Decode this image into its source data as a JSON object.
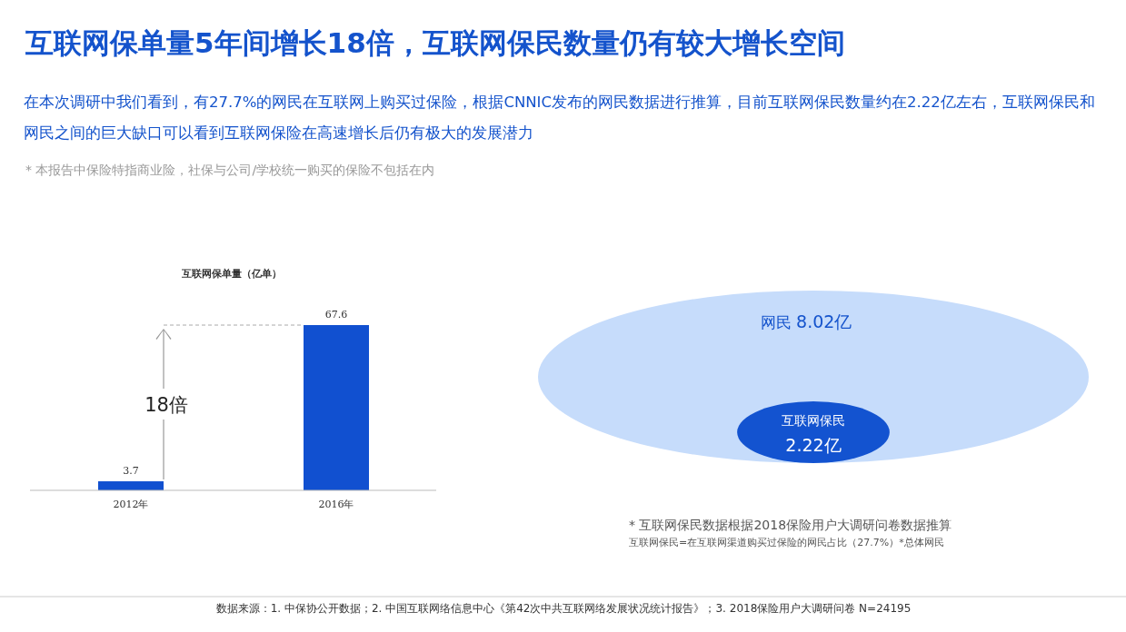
{
  "chart_data": [
    {
      "type": "other",
      "title": "互联网保单量5年间增长18倍，互联网保民数量仍有较大增长空间",
      "subtitle": "在本次调研中我们看到，有27.7%的网民在互联网上购买过保险，根据CNNIC发布的网民数据进行推算，目前互联网保民数量约在2.22亿左右，互联网保民和网民之间的巨大缺口可以看到互联网保险在高速增长后仍有极大的发展潜力",
      "annotations": [
        "* 本报告中保险特指商业险，社保与公司/学校统一购买的保险不包括在内",
        "数据来源：1. 中保协公开数据；2. 中国互联网络信息中心《第42次中共互联网络发展状况统计报告》；3. 2018保险用户大调研问卷 N=24195"
      ]
    },
    {
      "type": "bar",
      "title": "互联网保单量（亿单）",
      "categories": [
        "2012年",
        "2016年"
      ],
      "values": [
        3.7,
        67.6
      ],
      "color": "#1150d0",
      "data_labels": true,
      "ref_lines": [
        {
          "axis": "y",
          "value": 67.6,
          "label": null,
          "line_style": "dashed",
          "color": "#aaaaaa"
        }
      ],
      "annotations": [
        "18倍"
      ]
    },
    {
      "type": "other",
      "categories": [
        "网民",
        "互联网保民"
      ],
      "values": [
        8.02,
        2.22
      ],
      "value_labels": [
        "8.02亿",
        "2.22亿"
      ],
      "colors": [
        "#c6dcfb",
        "#1353d0"
      ],
      "annotations": [
        "* 互联网保民数据根据2018保险用户大调研问卷数据推算",
        "互联网保民=在互联网渠道购买过保险的网民占比（27.7%）*总体网民"
      ]
    }
  ]
}
